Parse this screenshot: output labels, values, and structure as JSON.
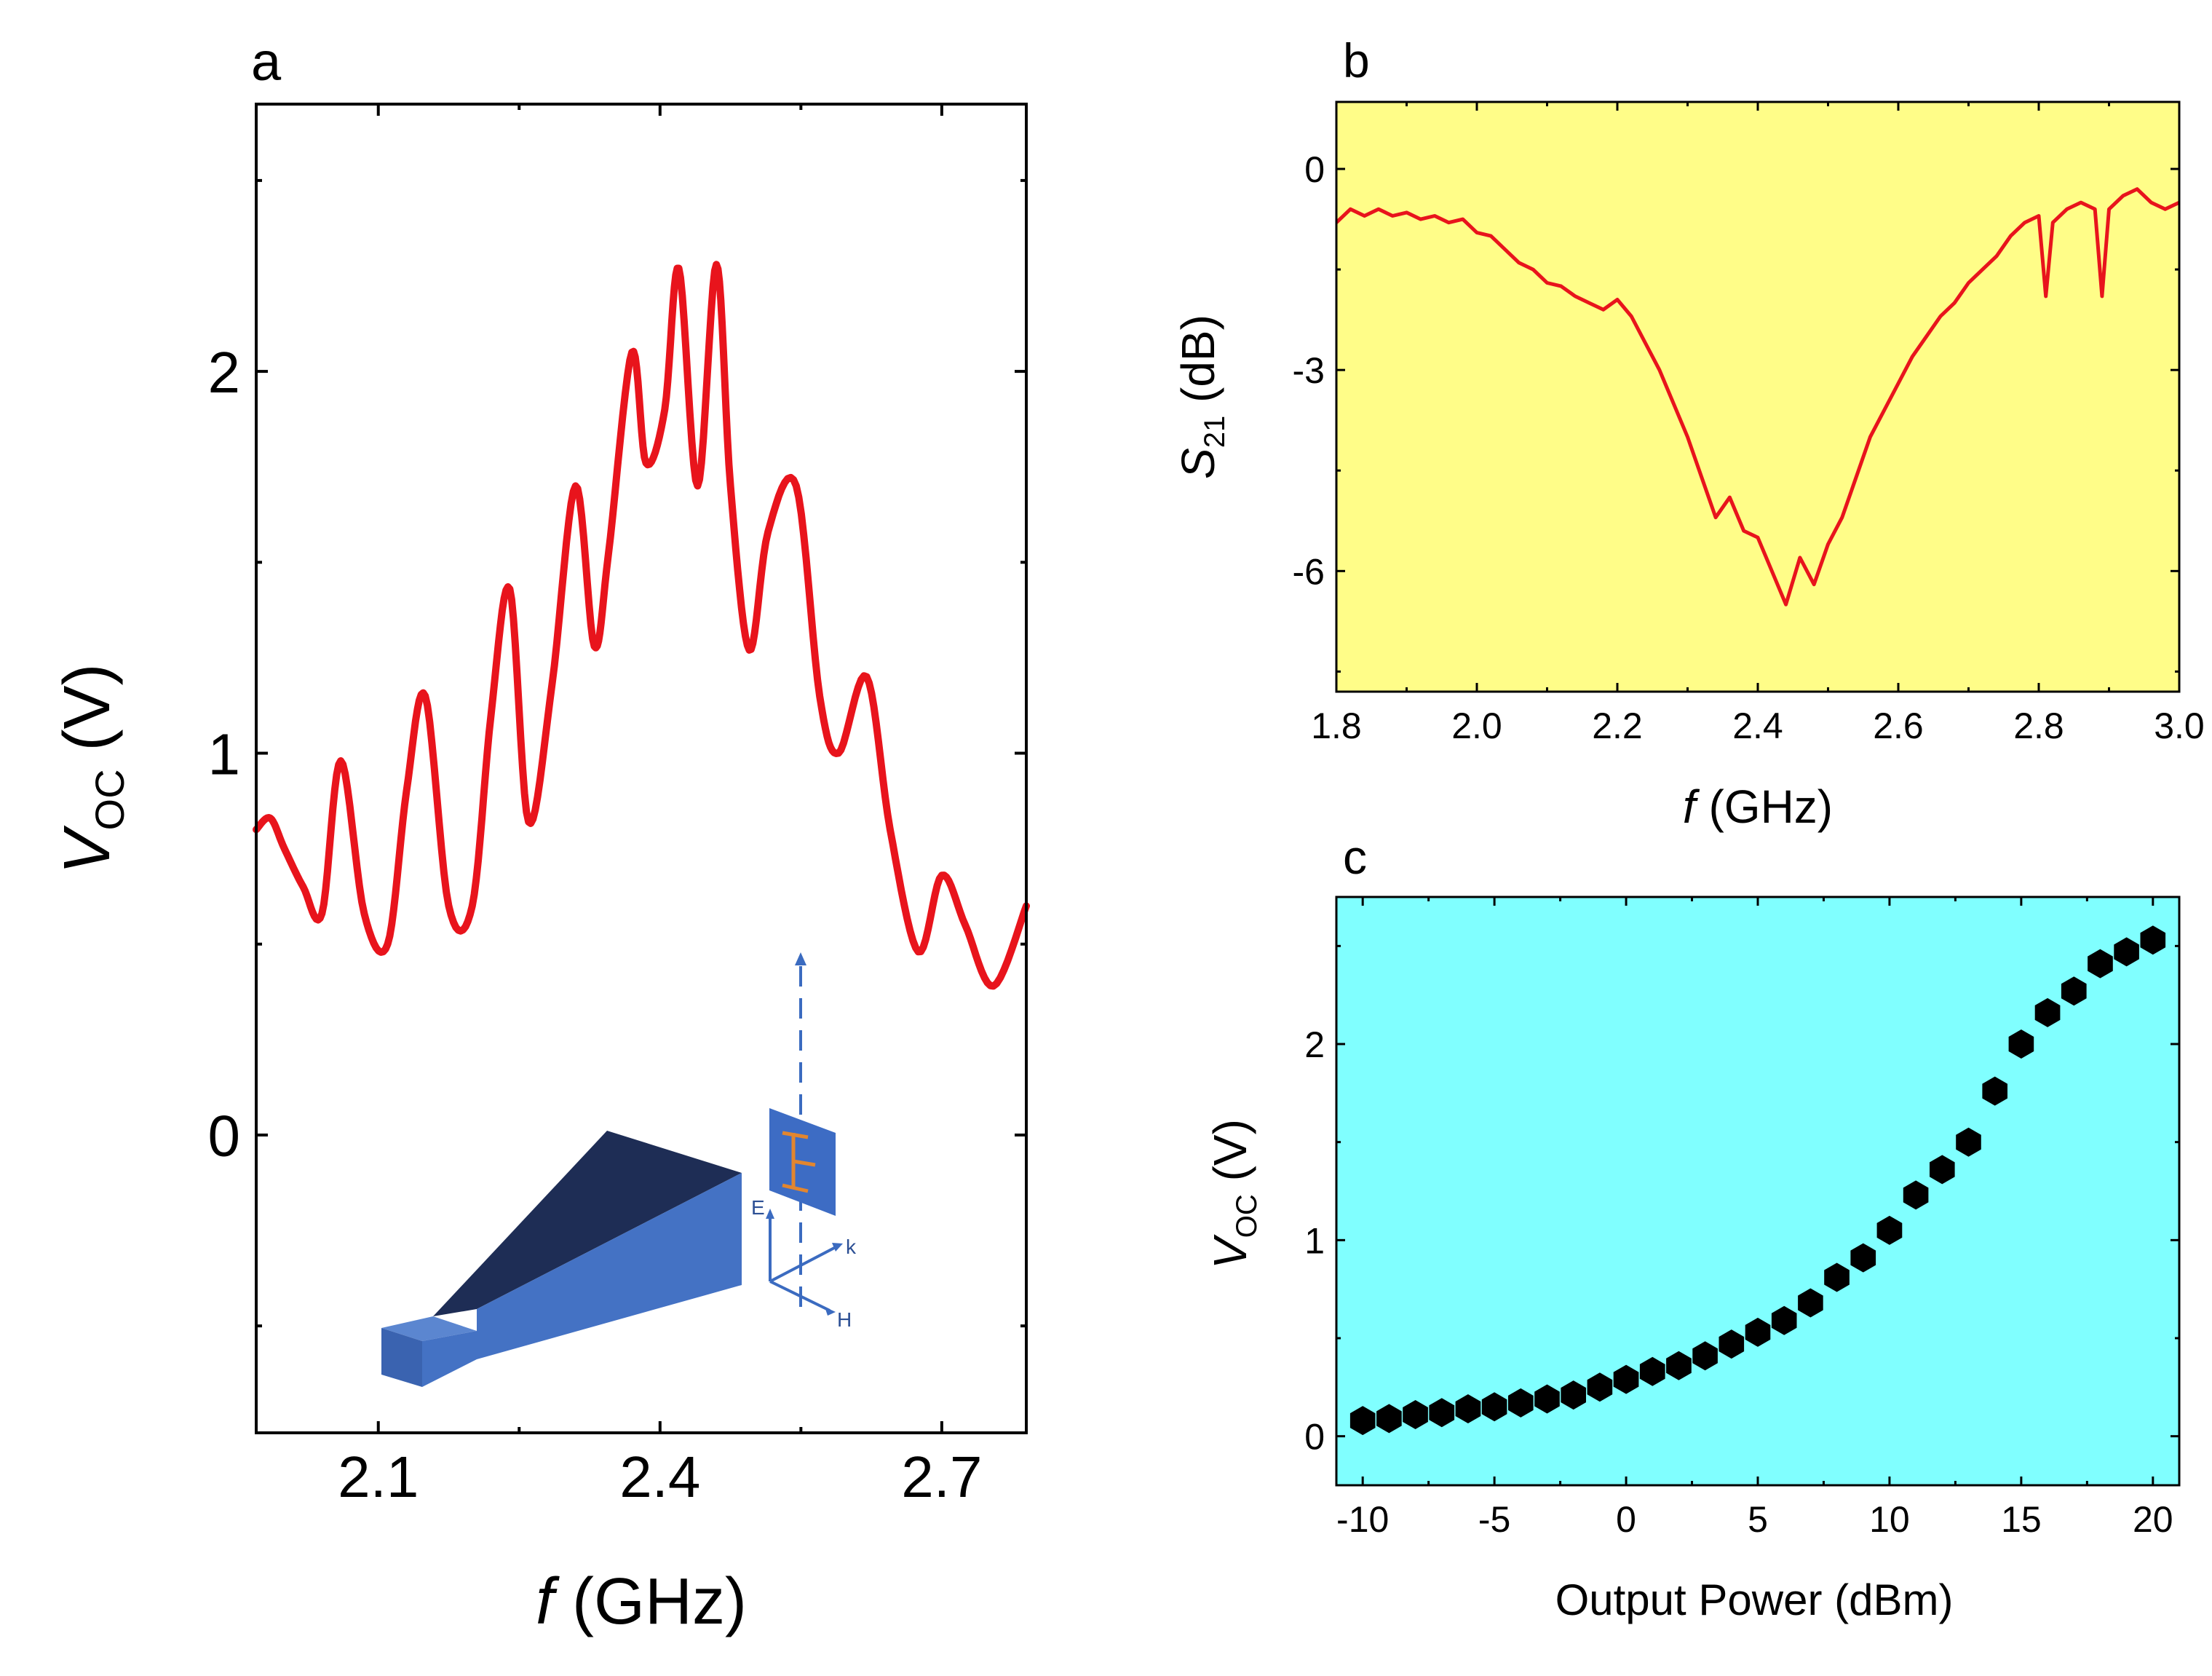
{
  "chart_data": [
    {
      "id": "a",
      "panel_label": "a",
      "type": "line",
      "xlabel_var": "f",
      "xlabel_unit": " (GHz)",
      "ylabel_var": "V",
      "ylabel_sub": "OC",
      "ylabel_unit": " (V)",
      "xlim": [
        1.97,
        2.79
      ],
      "ylim": [
        -0.78,
        2.7
      ],
      "x_ticks": [
        2.1,
        2.4,
        2.7
      ],
      "x_tick_labels": [
        "2.1",
        "2.4",
        "2.7"
      ],
      "y_ticks": [
        0,
        1,
        2
      ],
      "y_tick_labels": [
        "0",
        "1",
        "2"
      ],
      "line_color": "#e8141c",
      "background": "#ffffff",
      "series": [
        {
          "name": "V_OC",
          "x": [
            1.97,
            1.985,
            2.0,
            2.02,
            2.04,
            2.06,
            2.085,
            2.11,
            2.13,
            2.15,
            2.175,
            2.2,
            2.22,
            2.24,
            2.26,
            2.285,
            2.31,
            2.33,
            2.345,
            2.37,
            2.385,
            2.405,
            2.42,
            2.44,
            2.46,
            2.475,
            2.495,
            2.515,
            2.545,
            2.57,
            2.59,
            2.62,
            2.645,
            2.675,
            2.7,
            2.725,
            2.755,
            2.79
          ],
          "y": [
            0.8,
            0.83,
            0.75,
            0.65,
            0.58,
            0.98,
            0.58,
            0.5,
            0.9,
            1.15,
            0.6,
            0.6,
            1.1,
            1.43,
            0.82,
            1.18,
            1.7,
            1.28,
            1.52,
            2.05,
            1.76,
            1.9,
            2.27,
            1.7,
            2.28,
            1.7,
            1.27,
            1.58,
            1.7,
            1.15,
            1.0,
            1.2,
            0.8,
            0.48,
            0.68,
            0.55,
            0.39,
            0.6
          ]
        }
      ],
      "inset": {
        "labels": {
          "e": "E",
          "k": "k",
          "h": "H"
        },
        "colors": {
          "horn_top": "#1e2d55",
          "horn_side": "#4472c4",
          "horn_front": "#3a63b0",
          "sample": "#3d6cc4",
          "sample_line": "#e2862f",
          "arrow": "#3b6bc0"
        }
      }
    },
    {
      "id": "b",
      "panel_label": "b",
      "type": "line",
      "xlabel_var": "f",
      "xlabel_unit": " (GHz)",
      "ylabel_var": "S",
      "ylabel_sub": "21",
      "ylabel_unit": " (dB)",
      "xlim": [
        1.8,
        3.0
      ],
      "ylim": [
        -7.8,
        1.0
      ],
      "x_ticks": [
        1.8,
        2.0,
        2.2,
        2.4,
        2.6,
        2.8,
        3.0
      ],
      "x_tick_labels": [
        "1.8",
        "2.0",
        "2.2",
        "2.4",
        "2.6",
        "2.8",
        "3.0"
      ],
      "y_ticks": [
        0,
        -3,
        -6
      ],
      "y_tick_labels": [
        "0",
        "-3",
        "-6"
      ],
      "line_color": "#e8141c",
      "background": "#fffd88",
      "series": [
        {
          "name": "S21",
          "x": [
            1.8,
            1.82,
            1.84,
            1.86,
            1.88,
            1.9,
            1.92,
            1.94,
            1.96,
            1.98,
            2.0,
            2.02,
            2.04,
            2.06,
            2.08,
            2.1,
            2.12,
            2.14,
            2.16,
            2.18,
            2.2,
            2.22,
            2.24,
            2.26,
            2.28,
            2.3,
            2.32,
            2.34,
            2.36,
            2.38,
            2.4,
            2.42,
            2.44,
            2.46,
            2.48,
            2.5,
            2.52,
            2.54,
            2.56,
            2.58,
            2.6,
            2.62,
            2.64,
            2.66,
            2.68,
            2.7,
            2.72,
            2.74,
            2.76,
            2.78,
            2.8,
            2.81,
            2.82,
            2.84,
            2.86,
            2.88,
            2.89,
            2.9,
            2.92,
            2.94,
            2.96,
            2.98,
            3.0
          ],
          "y": [
            -0.8,
            -0.6,
            -0.7,
            -0.6,
            -0.7,
            -0.65,
            -0.75,
            -0.7,
            -0.8,
            -0.75,
            -0.95,
            -1.0,
            -1.2,
            -1.4,
            -1.5,
            -1.7,
            -1.75,
            -1.9,
            -2.0,
            -2.1,
            -1.95,
            -2.2,
            -2.6,
            -3.0,
            -3.5,
            -4.0,
            -4.6,
            -5.2,
            -4.9,
            -5.4,
            -5.5,
            -6.0,
            -6.5,
            -5.8,
            -6.2,
            -5.6,
            -5.2,
            -4.6,
            -4.0,
            -3.6,
            -3.2,
            -2.8,
            -2.5,
            -2.2,
            -2.0,
            -1.7,
            -1.5,
            -1.3,
            -1.0,
            -0.8,
            -0.7,
            -1.9,
            -0.8,
            -0.6,
            -0.5,
            -0.6,
            -1.9,
            -0.6,
            -0.4,
            -0.3,
            -0.5,
            -0.6,
            -0.5
          ]
        }
      ]
    },
    {
      "id": "c",
      "panel_label": "c",
      "type": "scatter",
      "xlabel": "Output Power (dBm)",
      "ylabel_var": "V",
      "ylabel_sub": "OC",
      "ylabel_unit": " (V)",
      "xlim": [
        -11,
        21
      ],
      "ylim": [
        -0.25,
        2.75
      ],
      "x_ticks": [
        -10,
        -5,
        0,
        5,
        10,
        15,
        20
      ],
      "x_tick_labels": [
        "-10",
        "-5",
        "0",
        "5",
        "10",
        "15",
        "20"
      ],
      "y_ticks": [
        0,
        1,
        2
      ],
      "y_tick_labels": [
        "0",
        "1",
        "2"
      ],
      "marker_color": "#000000",
      "background": "#80ffff",
      "series": [
        {
          "name": "V_OC",
          "x": [
            -10,
            -9,
            -8,
            -7,
            -6,
            -5,
            -4,
            -3,
            -2,
            -1,
            0,
            1,
            2,
            3,
            4,
            5,
            6,
            7,
            8,
            9,
            10,
            11,
            12,
            13,
            14,
            15,
            16,
            17,
            18,
            19,
            20
          ],
          "y": [
            0.08,
            0.09,
            0.11,
            0.12,
            0.14,
            0.15,
            0.17,
            0.19,
            0.21,
            0.25,
            0.29,
            0.33,
            0.36,
            0.41,
            0.47,
            0.53,
            0.59,
            0.68,
            0.81,
            0.91,
            1.05,
            1.23,
            1.36,
            1.5,
            1.76,
            2.0,
            2.16,
            2.27,
            2.41,
            2.47,
            2.53
          ]
        }
      ]
    }
  ]
}
